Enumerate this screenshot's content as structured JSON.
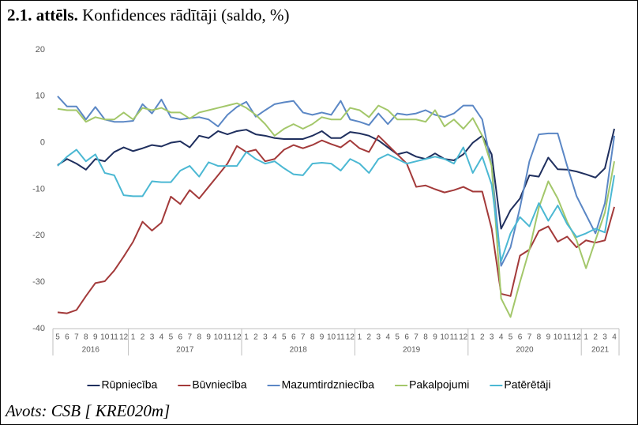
{
  "chart_data": {
    "type": "line",
    "figure_label": "2.1. attēls.",
    "title": "Konfidences rādītāji (saldo, %)",
    "source": "Avots: CSB [ KRE020m]",
    "categories": [
      "5",
      "6",
      "7",
      "8",
      "9",
      "10",
      "11",
      "12",
      "1",
      "2",
      "3",
      "4",
      "5",
      "6",
      "7",
      "8",
      "9",
      "10",
      "11",
      "12",
      "1",
      "2",
      "3",
      "4",
      "5",
      "6",
      "7",
      "8",
      "9",
      "10",
      "11",
      "12",
      "1",
      "2",
      "3",
      "4",
      "5",
      "6",
      "7",
      "8",
      "9",
      "10",
      "11",
      "12",
      "1",
      "2",
      "3",
      "4",
      "5",
      "6",
      "7",
      "8",
      "9",
      "10",
      "11",
      "12",
      "1",
      "2",
      "3",
      "4"
    ],
    "year_labels": [
      "2016",
      "2017",
      "2018",
      "2019",
      "2020",
      "2021"
    ],
    "ylim": [
      -40,
      20
    ],
    "yticks": [
      -40,
      -30,
      -20,
      -10,
      0,
      10,
      20
    ],
    "grid": false,
    "legend": "bottom",
    "series": [
      {
        "name": "Rūpniecība",
        "color": "#1f2f5e",
        "values": [
          -4.8,
          -3.5,
          -4.5,
          -5.8,
          -3.5,
          -4,
          -2,
          -1,
          -1.8,
          -1.2,
          -0.5,
          -0.8,
          0,
          0.3,
          -1,
          1.5,
          1,
          2.5,
          1.8,
          2.5,
          2.8,
          1.8,
          1.5,
          1,
          0.8,
          0.8,
          0.8,
          1.5,
          2.5,
          1,
          1,
          2.3,
          2,
          1.5,
          0.5,
          -1,
          -2.5,
          -2,
          -3,
          -3.5,
          -2.3,
          -3.5,
          -3.8,
          -2.5,
          0,
          1.5,
          -2.5,
          -18.5,
          -14.5,
          -12,
          -7,
          -7.3,
          -3.2,
          -5.7,
          -5.8,
          -6.2,
          -6.8,
          -7.5,
          -5.5,
          3
        ]
      },
      {
        "name": "Būvniecība",
        "color": "#a33a3a",
        "values": [
          -36.5,
          -36.7,
          -36,
          -33,
          -30.2,
          -29.8,
          -27.5,
          -24.5,
          -21.3,
          -17,
          -18.9,
          -17.2,
          -11.6,
          -13.2,
          -10.2,
          -12,
          -9.5,
          -7,
          -4.5,
          -0.7,
          -2,
          -1.5,
          -4,
          -3.5,
          -1.5,
          -0.5,
          -1.2,
          -0.5,
          0.5,
          -0.3,
          -1,
          0.5,
          -1.2,
          -2,
          1.5,
          -0.5,
          -2.5,
          -4.5,
          -9.5,
          -9.2,
          -10,
          -10.7,
          -10.2,
          -9.5,
          -10.5,
          -10.5,
          -18.5,
          -32.5,
          -33,
          -24.3,
          -23,
          -19,
          -18,
          -21.3,
          -20.2,
          -22.5,
          -21,
          -21.5,
          -21,
          -13.8
        ]
      },
      {
        "name": "Mazumtirdzniecība",
        "color": "#5b87c5",
        "values": [
          10,
          7.8,
          7.8,
          5,
          7.7,
          5,
          4.5,
          4.5,
          4.7,
          8.3,
          6.3,
          9.3,
          5.5,
          5,
          5.3,
          5.5,
          5,
          3.5,
          6,
          7.7,
          8.8,
          5.6,
          7,
          8.3,
          8.7,
          9,
          6.5,
          6,
          6.5,
          6,
          9,
          5,
          4.5,
          3.8,
          6.3,
          4,
          6.3,
          6,
          6.3,
          7,
          6,
          5.5,
          6.3,
          8,
          8,
          5,
          -5,
          -26.5,
          -22.5,
          -14,
          -4,
          1.8,
          2,
          2,
          -5,
          -11.5,
          -15.5,
          -19.5,
          -13,
          1.5
        ]
      },
      {
        "name": "Pakalpojumi",
        "color": "#a3c76a",
        "values": [
          7.3,
          7,
          7,
          4.5,
          5.5,
          5,
          5,
          6.5,
          5,
          7.5,
          7,
          7.5,
          6.5,
          6.5,
          5.2,
          6.5,
          7,
          7.5,
          8,
          8.5,
          7.5,
          6,
          4,
          1.5,
          3,
          4,
          3,
          4,
          5.5,
          5,
          5,
          7.5,
          7,
          5.5,
          8,
          7,
          5,
          5,
          5,
          4.5,
          7,
          3.5,
          5,
          3,
          5.3,
          1.5,
          -5,
          -33.5,
          -37.5,
          -30,
          -23,
          -14,
          -8.3,
          -12,
          -17,
          -21,
          -27,
          -21,
          -15,
          -4
        ]
      },
      {
        "name": "Patērētāji",
        "color": "#4bb8d3",
        "values": [
          -5,
          -3,
          -1.5,
          -4,
          -2.5,
          -6.5,
          -7,
          -11.3,
          -11.5,
          -11.5,
          -8.3,
          -8.5,
          -8.5,
          -6,
          -5,
          -7.3,
          -4.2,
          -5,
          -5,
          -5,
          -2,
          -3.5,
          -4.5,
          -4,
          -5.5,
          -6.8,
          -7,
          -4.5,
          -4.3,
          -4.5,
          -6,
          -3.5,
          -4.5,
          -6.5,
          -3.5,
          -2.5,
          -3.5,
          -4.5,
          -4,
          -3.5,
          -3,
          -3.5,
          -4.5,
          -1,
          -6.5,
          -3,
          -9,
          -25.5,
          -19.5,
          -16,
          -18,
          -13,
          -16.8,
          -13.5,
          -17.5,
          -20.3,
          -19.5,
          -18.5,
          -19.3,
          -7
        ]
      }
    ]
  }
}
